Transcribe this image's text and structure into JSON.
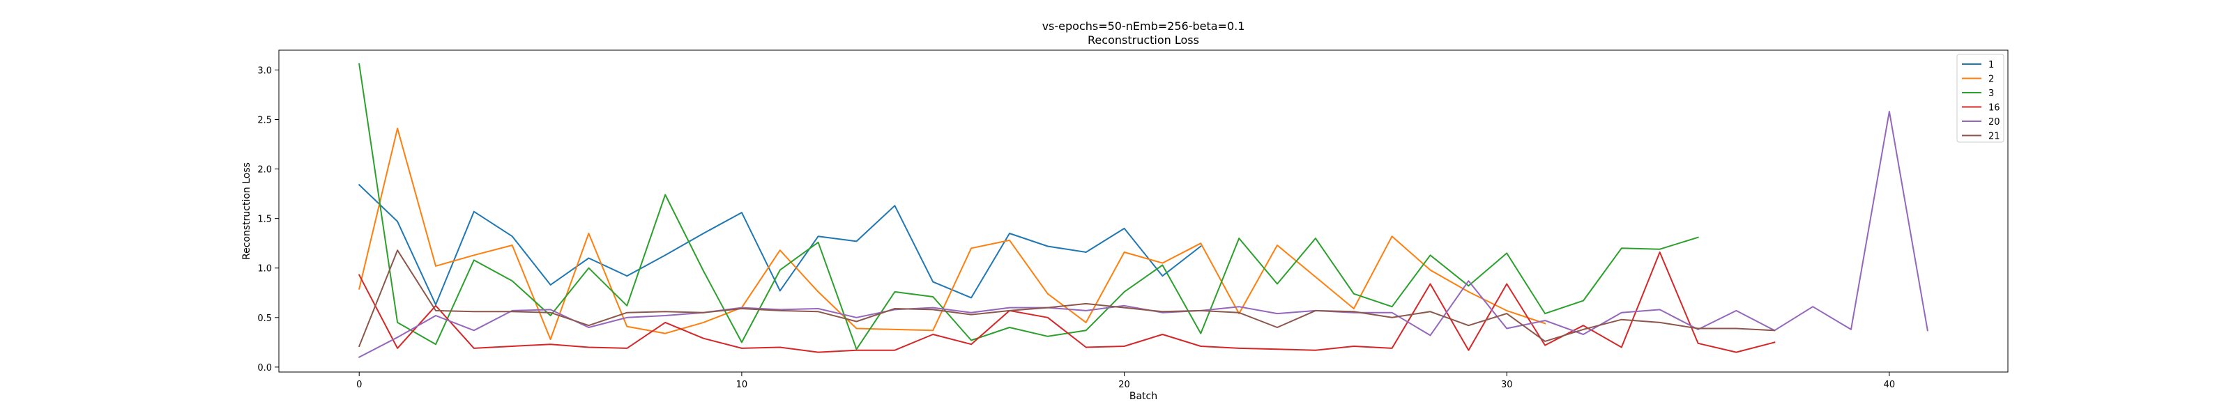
{
  "chart_data": {
    "type": "line",
    "title": "vs-epochs=50-nEmb=256-beta=0.1",
    "subtitle": "Reconstruction Loss",
    "xlabel": "Batch",
    "ylabel": "Reconstruction Loss",
    "xlim": [
      -2.1,
      43.1
    ],
    "ylim": [
      -0.05,
      3.2
    ],
    "xticks": [
      0,
      10,
      20,
      30,
      40
    ],
    "yticks": [
      0.0,
      0.5,
      1.0,
      1.5,
      2.0,
      2.5,
      3.0
    ],
    "ytick_labels": [
      "0.0",
      "0.5",
      "1.0",
      "1.5",
      "2.0",
      "2.5",
      "3.0"
    ],
    "grid": false,
    "legend_position": "top-right",
    "series": [
      {
        "name": "1",
        "color": "#1f77b4",
        "values": [
          1.84,
          1.47,
          0.63,
          1.57,
          1.32,
          0.83,
          1.1,
          0.92,
          1.13,
          1.35,
          1.56,
          0.77,
          1.32,
          1.27,
          1.63,
          0.86,
          0.7,
          1.35,
          1.22,
          1.16,
          1.4,
          0.92,
          1.22
        ]
      },
      {
        "name": "2",
        "color": "#ff7f0e",
        "values": [
          0.79,
          2.41,
          1.02,
          1.13,
          1.23,
          0.28,
          1.35,
          0.41,
          0.34,
          0.45,
          0.6,
          1.18,
          0.76,
          0.39,
          0.38,
          0.37,
          1.2,
          1.28,
          0.74,
          0.45,
          1.16,
          1.05,
          1.25,
          0.54,
          1.23,
          0.91,
          0.59,
          1.32,
          0.98,
          0.76,
          0.57,
          0.44
        ]
      },
      {
        "name": "3",
        "color": "#2ca02c",
        "values": [
          3.06,
          0.45,
          0.23,
          1.08,
          0.87,
          0.52,
          1.0,
          0.62,
          1.74,
          0.97,
          0.25,
          0.98,
          1.26,
          0.18,
          0.76,
          0.71,
          0.27,
          0.4,
          0.31,
          0.37,
          0.76,
          1.03,
          0.34,
          1.3,
          0.84,
          1.3,
          0.74,
          0.61,
          1.13,
          0.82,
          1.15,
          0.54,
          0.67,
          1.2,
          1.19,
          1.31
        ]
      },
      {
        "name": "16",
        "color": "#d62728",
        "values": [
          0.93,
          0.19,
          0.62,
          0.19,
          0.21,
          0.23,
          0.2,
          0.19,
          0.45,
          0.29,
          0.19,
          0.2,
          0.15,
          0.17,
          0.17,
          0.33,
          0.23,
          0.57,
          0.5,
          0.2,
          0.21,
          0.33,
          0.21,
          0.19,
          0.18,
          0.17,
          0.21,
          0.19,
          0.84,
          0.17,
          0.84,
          0.22,
          0.42,
          0.2,
          1.16,
          0.24,
          0.15,
          0.25
        ]
      },
      {
        "name": "20",
        "color": "#9467bd",
        "values": [
          0.1,
          0.3,
          0.52,
          0.37,
          0.57,
          0.58,
          0.4,
          0.5,
          0.52,
          0.55,
          0.6,
          0.58,
          0.59,
          0.5,
          0.58,
          0.6,
          0.55,
          0.6,
          0.6,
          0.57,
          0.62,
          0.55,
          0.57,
          0.61,
          0.54,
          0.57,
          0.55,
          0.55,
          0.32,
          0.87,
          0.39,
          0.47,
          0.33,
          0.55,
          0.58,
          0.38,
          0.57,
          0.37,
          0.61,
          0.38,
          2.58,
          0.37
        ]
      },
      {
        "name": "21",
        "color": "#8c564b",
        "values": [
          0.21,
          1.18,
          0.57,
          0.56,
          0.56,
          0.55,
          0.42,
          0.55,
          0.56,
          0.55,
          0.59,
          0.57,
          0.56,
          0.46,
          0.59,
          0.58,
          0.53,
          0.57,
          0.6,
          0.64,
          0.6,
          0.56,
          0.57,
          0.55,
          0.4,
          0.57,
          0.56,
          0.5,
          0.56,
          0.42,
          0.54,
          0.26,
          0.38,
          0.48,
          0.45,
          0.39,
          0.39,
          0.37
        ]
      }
    ]
  }
}
